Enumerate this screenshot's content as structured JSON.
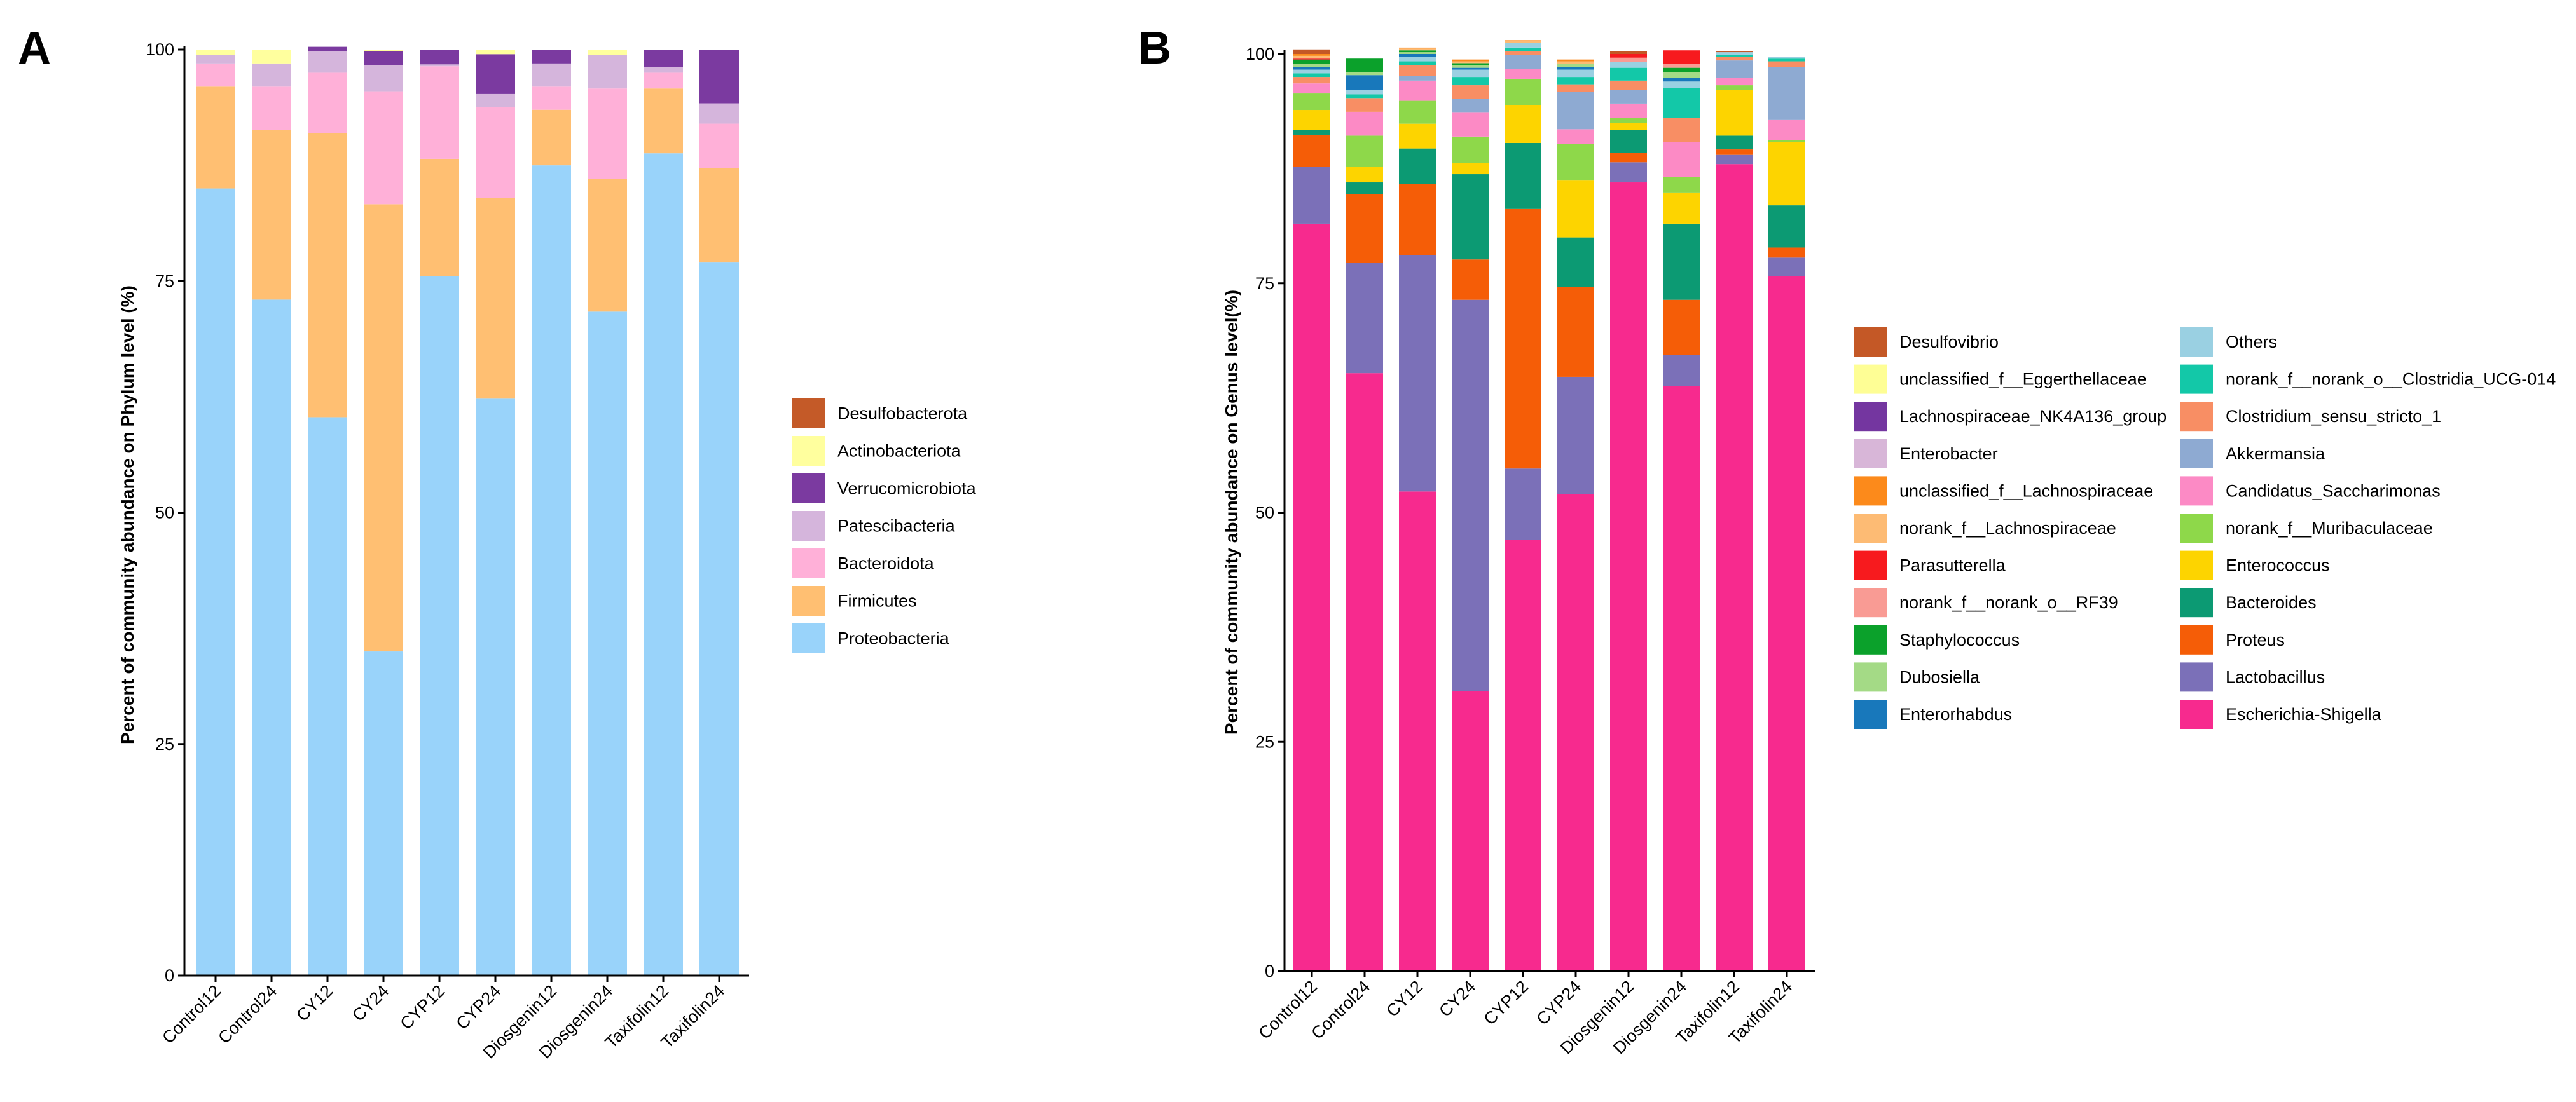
{
  "chart_data": [
    {
      "type": "bar",
      "stacked": true,
      "panel_label": "A",
      "ylabel": "Percent of community abundance on Phylum level (%)",
      "xlabel": "",
      "ylim": [
        0,
        100
      ],
      "yticks": [
        "0",
        "25",
        "50",
        "75",
        "100"
      ],
      "legend_position": "right",
      "categories": [
        "Control12",
        "Control24",
        "CY12",
        "CY24",
        "CYP12",
        "CYP24",
        "Diosgenin12",
        "Diosgenin24",
        "Taxifolin12",
        "Taxifolin24"
      ],
      "series": [
        {
          "name": "Proteobacteria",
          "color": "#99d3fa",
          "values": [
            85.0,
            73.0,
            60.3,
            35.0,
            75.5,
            62.3,
            87.5,
            71.7,
            88.8,
            77.0
          ]
        },
        {
          "name": "Firmicutes",
          "color": "#ffbf72",
          "values": [
            11.0,
            18.3,
            30.7,
            48.3,
            12.7,
            21.7,
            6.0,
            14.3,
            7.0,
            10.2
          ]
        },
        {
          "name": "Bacteroidota",
          "color": "#ffb0d8",
          "values": [
            2.5,
            4.7,
            6.5,
            12.2,
            10.0,
            9.8,
            2.5,
            9.8,
            1.7,
            4.8
          ]
        },
        {
          "name": "Patescibacteria",
          "color": "#d5b5dc",
          "values": [
            0.9,
            2.5,
            2.3,
            2.8,
            0.2,
            1.4,
            2.5,
            3.6,
            0.6,
            2.2
          ]
        },
        {
          "name": "Verrucomicrobiota",
          "color": "#7b3aa0",
          "values": [
            0.0,
            0.0,
            0.5,
            1.5,
            1.6,
            4.3,
            1.5,
            0.0,
            1.9,
            5.8
          ]
        },
        {
          "name": "Actinobacteriota",
          "color": "#ffff9e",
          "values": [
            0.6,
            1.5,
            0.0,
            0.2,
            0.0,
            0.5,
            0.0,
            0.6,
            0.0,
            0.0
          ]
        },
        {
          "name": "Desulfobacterota",
          "color": "#c45a28",
          "values": [
            0.0,
            0.0,
            0.0,
            0.0,
            0.0,
            0.0,
            0.0,
            0.0,
            0.0,
            0.0
          ]
        }
      ]
    },
    {
      "type": "bar",
      "stacked": true,
      "panel_label": "B",
      "ylabel": "Percent of community abundance on Genus level(%)",
      "xlabel": "",
      "ylim": [
        0,
        100
      ],
      "yticks": [
        "0",
        "25",
        "50",
        "75",
        "100"
      ],
      "legend_position": "right",
      "legend_columns": [
        [
          "Desulfovibrio",
          "unclassified_f__Eggerthellaceae",
          "Lachnospiraceae_NK4A136_group",
          "Enterobacter",
          "unclassified_f__Lachnospiraceae",
          "norank_f__Lachnospiraceae",
          "Parasutterella",
          "norank_f__norank_o__RF39",
          "Staphylococcus",
          "Dubosiella",
          "Enterorhabdus"
        ],
        [
          "Others",
          "norank_f__norank_o__Clostridia_UCG-014",
          "Clostridium_sensu_stricto_1",
          "Akkermansia",
          "Candidatus_Saccharimonas",
          "norank_f__Muribaculaceae",
          "Enterococcus",
          "Bacteroides",
          "Proteus",
          "Lactobacillus",
          "Escherichia-Shigella"
        ]
      ],
      "categories": [
        "Control12",
        "Control24",
        "CY12",
        "CY24",
        "CYP12",
        "CYP24",
        "Diosgenin12",
        "Diosgenin24",
        "Taxifolin12",
        "Taxifolin24"
      ],
      "series": [
        {
          "name": "Escherichia-Shigella",
          "color": "#f72a8e",
          "values": [
            81.5,
            65.2,
            52.3,
            30.5,
            47.0,
            52.0,
            86.0,
            63.8,
            88.0,
            75.8
          ]
        },
        {
          "name": "Lactobacillus",
          "color": "#7b70b8",
          "values": [
            6.2,
            12.0,
            25.8,
            42.7,
            7.8,
            12.8,
            2.2,
            3.4,
            1.0,
            2.0
          ]
        },
        {
          "name": "Proteus",
          "color": "#f55d07",
          "values": [
            3.5,
            7.5,
            7.7,
            4.4,
            28.3,
            9.8,
            1.0,
            6.0,
            0.6,
            1.1
          ]
        },
        {
          "name": "Bacteroides",
          "color": "#0c9a73",
          "values": [
            0.5,
            1.3,
            3.9,
            9.3,
            7.2,
            5.4,
            2.5,
            8.3,
            1.5,
            4.6
          ]
        },
        {
          "name": "Enterococcus",
          "color": "#fdd400",
          "values": [
            2.2,
            1.7,
            2.7,
            1.2,
            4.1,
            6.2,
            0.8,
            3.4,
            5.0,
            6.9
          ]
        },
        {
          "name": "norank_f__Muribaculaceae",
          "color": "#8ed84a",
          "values": [
            1.8,
            3.4,
            2.5,
            2.9,
            2.9,
            4.0,
            0.5,
            1.7,
            0.5,
            0.2
          ]
        },
        {
          "name": "Candidatus_Saccharimonas",
          "color": "#fc8ac5",
          "values": [
            1.1,
            2.6,
            2.2,
            2.6,
            1.1,
            1.6,
            1.6,
            3.8,
            0.8,
            2.2
          ]
        },
        {
          "name": "Akkermansia",
          "color": "#8eaad2",
          "values": [
            0.0,
            0.0,
            0.5,
            1.5,
            1.5,
            4.1,
            1.5,
            0.0,
            1.9,
            5.8
          ]
        },
        {
          "name": "Clostridium_sensu_stricto_1",
          "color": "#f88e64",
          "values": [
            0.7,
            1.5,
            1.2,
            1.5,
            0.4,
            0.8,
            1.0,
            2.6,
            0.4,
            0.6
          ]
        },
        {
          "name": "norank_f__norank_o__Clostridia_UCG-014",
          "color": "#13c8a8",
          "values": [
            0.4,
            0.4,
            0.4,
            0.9,
            0.4,
            0.8,
            1.4,
            3.3,
            0.2,
            0.3
          ]
        },
        {
          "name": "Others",
          "color": "#9ad0e2",
          "values": [
            0.4,
            0.5,
            0.5,
            0.8,
            0.5,
            0.8,
            0.6,
            0.7,
            0.3,
            0.2
          ]
        },
        {
          "name": "Enterorhabdus",
          "color": "#1878bb",
          "values": [
            0.3,
            1.6,
            0.3,
            0.2,
            0.0,
            0.3,
            0.0,
            0.4,
            0.0,
            0.0
          ]
        },
        {
          "name": "Dubosiella",
          "color": "#a4da86",
          "values": [
            0.3,
            0.3,
            0.2,
            0.3,
            0.0,
            0.3,
            0.0,
            0.6,
            0.0,
            0.0
          ]
        },
        {
          "name": "Staphylococcus",
          "color": "#0ba12b",
          "values": [
            0.5,
            1.5,
            0.2,
            0.2,
            0.0,
            0.0,
            0.0,
            0.5,
            0.0,
            0.0
          ]
        },
        {
          "name": "norank_f__norank_o__RF39",
          "color": "#f99b94",
          "values": [
            0.0,
            0.0,
            0.0,
            0.0,
            0.0,
            0.0,
            0.5,
            0.4,
            0.0,
            0.0
          ]
        },
        {
          "name": "Parasutterella",
          "color": "#f71a1e",
          "values": [
            0.1,
            0.0,
            0.0,
            0.0,
            0.0,
            0.0,
            0.4,
            1.5,
            0.0,
            0.0
          ]
        },
        {
          "name": "norank_f__Lachnospiraceae",
          "color": "#fdbb74",
          "values": [
            0.3,
            0.0,
            0.2,
            0.2,
            0.2,
            0.3,
            0.0,
            0.0,
            0.0,
            0.0
          ]
        },
        {
          "name": "unclassified_f__Lachnospiraceae",
          "color": "#fc8a1b",
          "values": [
            0.2,
            0.0,
            0.1,
            0.2,
            0.1,
            0.2,
            0.0,
            0.0,
            0.0,
            0.0
          ]
        },
        {
          "name": "Enterobacter",
          "color": "#d8b6d8",
          "values": [
            0.0,
            0.0,
            0.0,
            0.0,
            0.0,
            0.0,
            0.0,
            0.0,
            0.0,
            0.0
          ]
        },
        {
          "name": "Lachnospiraceae_NK4A136_group",
          "color": "#7436a0",
          "values": [
            0.0,
            0.0,
            0.0,
            0.0,
            0.0,
            0.0,
            0.0,
            0.0,
            0.0,
            0.0
          ]
        },
        {
          "name": "unclassified_f__Eggerthellaceae",
          "color": "#fefe95",
          "values": [
            0.0,
            0.0,
            0.0,
            0.0,
            0.0,
            0.0,
            0.0,
            0.0,
            0.0,
            0.0
          ]
        },
        {
          "name": "Desulfovibrio",
          "color": "#c45826",
          "values": [
            0.5,
            0.0,
            0.0,
            0.0,
            0.0,
            0.0,
            0.3,
            0.0,
            0.1,
            0.0
          ]
        }
      ]
    }
  ]
}
